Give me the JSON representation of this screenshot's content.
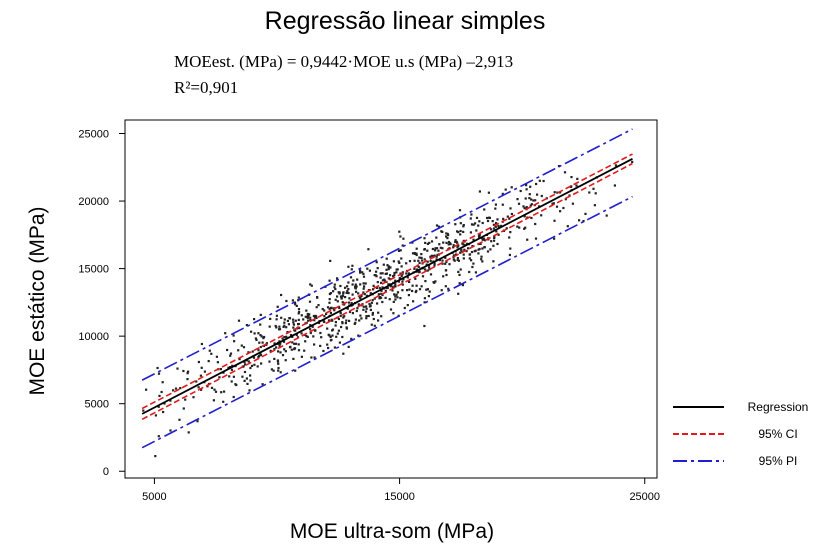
{
  "chart_data": {
    "type": "scatter",
    "title": "Regressão linear simples",
    "equation": "MOEest. (MPa) = 0,9442·MOE u.s (MPa) –2,913",
    "r_squared": "R²=0,901",
    "xlabel": "MOE ultra-som (MPa)",
    "ylabel": "MOE estático (MPa)",
    "xlim": [
      3800,
      25500
    ],
    "ylim": [
      -500,
      26000
    ],
    "xticks": [
      5000,
      15000,
      25000
    ],
    "xtick_labels": [
      "5000",
      "15000",
      "25000"
    ],
    "yticks": [
      0,
      5000,
      10000,
      15000,
      20000,
      25000
    ],
    "ytick_labels": [
      "0",
      "5000",
      "10000",
      "15000",
      "20000",
      "25000"
    ],
    "legend_position": "right",
    "regression": {
      "slope": 0.9442,
      "intercept": -2.913
    },
    "x_range": [
      4500,
      24500
    ],
    "series": [
      {
        "name": "Regression",
        "kind": "line",
        "color": "#000000",
        "style": "solid",
        "x": [
          4500,
          24500
        ],
        "y": [
          4246,
          23130
        ]
      },
      {
        "name": "95% CI",
        "kind": "band",
        "color": "#e31a1c",
        "style": "dashed",
        "x": [
          4500,
          24500
        ],
        "upper": [
          4646,
          23480
        ],
        "lower": [
          3846,
          22780
        ]
      },
      {
        "name": "95% PI",
        "kind": "band",
        "color": "#1f1fcf",
        "style": "dashdot",
        "x": [
          4500,
          24500
        ],
        "upper": [
          6746,
          25330
        ],
        "lower": [
          1746,
          20330
        ]
      }
    ],
    "points": {
      "count": 900,
      "color": "#222222",
      "x_distribution": {
        "min": 4500,
        "max": 24500,
        "center": 14000,
        "spread": 4200
      },
      "residual_sd": 1250
    }
  }
}
